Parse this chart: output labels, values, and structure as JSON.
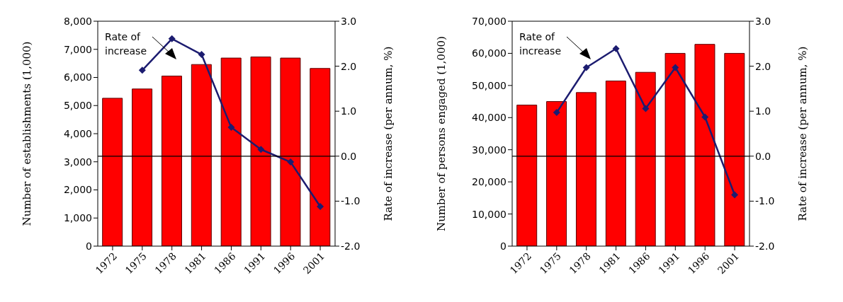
{
  "chart_data": [
    {
      "type": "bar",
      "categories": [
        "1972",
        "1975",
        "1978",
        "1981",
        "1986",
        "1991",
        "1996",
        "2001"
      ],
      "ylabel": "Number of establishments (1,000)",
      "y2label": "Rate of increase (per annum, %)",
      "series": [
        {
          "color": "#ff0000",
          "values": [
            5260,
            5590,
            6050,
            6460,
            6690,
            6730,
            6690,
            6320
          ]
        },
        {
          "type": "line",
          "axis": "y2",
          "color": "#1c1c70",
          "marker": "diamond",
          "line_style": "solid",
          "values": [
            null,
            1.91,
            2.61,
            2.26,
            0.64,
            0.15,
            -0.13,
            -1.12
          ]
        }
      ],
      "ylim": [
        0,
        8000
      ],
      "yticks": [
        {
          "value": 0,
          "label": "0"
        },
        {
          "value": 1000,
          "label": "1,000"
        },
        {
          "value": 2000,
          "label": "2,000"
        },
        {
          "value": 3000,
          "label": "3,000"
        },
        {
          "value": 4000,
          "label": "4,000"
        },
        {
          "value": 5000,
          "label": "5,000"
        },
        {
          "value": 6000,
          "label": "6,000"
        },
        {
          "value": 7000,
          "label": "7,000"
        },
        {
          "value": 8000,
          "label": "8,000"
        }
      ],
      "y2lim": [
        -2,
        3
      ],
      "y2ticks": [
        {
          "value": -2,
          "label": "-2.0"
        },
        {
          "value": -1,
          "label": "-1.0"
        },
        {
          "value": 0,
          "label": "0.0"
        },
        {
          "value": 1,
          "label": "1.0"
        },
        {
          "value": 2,
          "label": "2.0"
        },
        {
          "value": 3,
          "label": "3.0"
        }
      ],
      "ref_lines": [
        {
          "axis": "y2",
          "value": 0,
          "color": "#000000"
        }
      ],
      "annotations": [
        "Rate of increase"
      ],
      "grid": false,
      "legend": false
    },
    {
      "type": "bar",
      "categories": [
        "1972",
        "1975",
        "1978",
        "1981",
        "1986",
        "1991",
        "1996",
        "2001"
      ],
      "ylabel": "Number of persons engaged (1,000)",
      "y2label": "Rate of increase (per annum, %)",
      "series": [
        {
          "color": "#ff0000",
          "values": [
            43900,
            45000,
            47800,
            51400,
            54100,
            60000,
            62800,
            60000
          ]
        },
        {
          "type": "line",
          "axis": "y2",
          "color": "#1c1c70",
          "marker": "diamond",
          "line_style": "solid",
          "values": [
            null,
            0.97,
            1.97,
            2.39,
            1.06,
            1.97,
            0.87,
            -0.86
          ]
        }
      ],
      "ylim": [
        0,
        70000
      ],
      "yticks": [
        {
          "value": 0,
          "label": "0"
        },
        {
          "value": 10000,
          "label": "10,000"
        },
        {
          "value": 20000,
          "label": "20,000"
        },
        {
          "value": 30000,
          "label": "30,000"
        },
        {
          "value": 40000,
          "label": "40,000"
        },
        {
          "value": 50000,
          "label": "50,000"
        },
        {
          "value": 60000,
          "label": "60,000"
        },
        {
          "value": 70000,
          "label": "70,000"
        }
      ],
      "y2lim": [
        -2,
        3
      ],
      "y2ticks": [
        {
          "value": -2,
          "label": "-2.0"
        },
        {
          "value": -1,
          "label": "-1.0"
        },
        {
          "value": 0,
          "label": "0.0"
        },
        {
          "value": 1,
          "label": "1.0"
        },
        {
          "value": 2,
          "label": "2.0"
        },
        {
          "value": 3,
          "label": "3.0"
        }
      ],
      "ref_lines": [
        {
          "axis": "y2",
          "value": 0,
          "color": "#000000"
        }
      ],
      "annotations": [
        "Rate of increase"
      ],
      "grid": false,
      "legend": false
    }
  ]
}
